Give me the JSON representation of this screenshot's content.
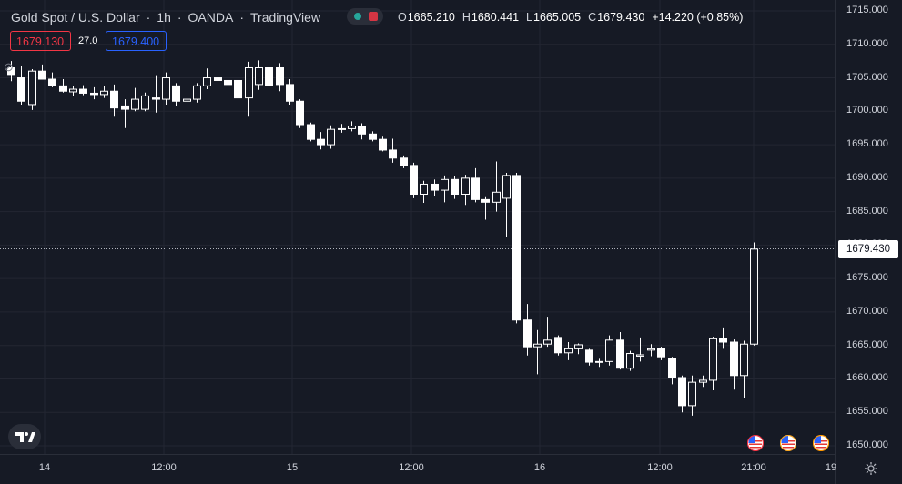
{
  "header": {
    "symbol": "Gold Spot / U.S. Dollar",
    "interval": "1h",
    "broker": "OANDA",
    "platform": "TradingView",
    "sep": "·",
    "o_label": "O",
    "o_value": "1665.210",
    "h_label": "H",
    "h_value": "1680.441",
    "l_label": "L",
    "l_value": "1665.005",
    "c_label": "C",
    "c_value": "1679.430",
    "change": "+14.220 (+0.85%)"
  },
  "trade": {
    "bid": "1679.130",
    "spread": "27.0",
    "ask": "1679.400"
  },
  "colors": {
    "background": "#161a25",
    "grid": "#232632",
    "candle_up": "#ffffff",
    "candle_down": "#ffffff",
    "bid": "#f23645",
    "ask": "#2962ff",
    "status_green": "#26a69a"
  },
  "icons": [
    "tradingview-logo-icon",
    "us-flag-icon",
    "settings-gear-icon",
    "status-dot-icon"
  ],
  "chart_data": {
    "type": "candlestick",
    "last_price": "1679.430",
    "y_ticks": [
      "1715.000",
      "1710.000",
      "1705.000",
      "1700.000",
      "1695.000",
      "1690.000",
      "1685.000",
      "1680.000",
      "1675.000",
      "1670.000",
      "1665.000",
      "1660.000",
      "1655.000",
      "1650.000"
    ],
    "ylim": [
      1650,
      1715
    ],
    "x_ticks": [
      "14",
      "12:00",
      "15",
      "12:00",
      "16",
      "12:00",
      "21:00",
      "19"
    ],
    "grid": true,
    "candles": [
      {
        "o": 1706.5,
        "h": 1707.5,
        "l": 1704.5,
        "c": 1705.5
      },
      {
        "o": 1705.0,
        "h": 1706.8,
        "l": 1701.0,
        "c": 1701.5
      },
      {
        "o": 1701.0,
        "h": 1706.3,
        "l": 1700.2,
        "c": 1706.0
      },
      {
        "o": 1706.0,
        "h": 1707.0,
        "l": 1704.8,
        "c": 1704.8
      },
      {
        "o": 1704.8,
        "h": 1705.8,
        "l": 1703.6,
        "c": 1703.8
      },
      {
        "o": 1703.8,
        "h": 1704.8,
        "l": 1702.8,
        "c": 1703.0
      },
      {
        "o": 1702.9,
        "h": 1703.8,
        "l": 1702.3,
        "c": 1703.3
      },
      {
        "o": 1703.3,
        "h": 1703.9,
        "l": 1702.4,
        "c": 1702.7
      },
      {
        "o": 1702.7,
        "h": 1703.6,
        "l": 1701.8,
        "c": 1702.5
      },
      {
        "o": 1702.5,
        "h": 1703.8,
        "l": 1702.0,
        "c": 1703.0
      },
      {
        "o": 1703.0,
        "h": 1704.0,
        "l": 1699.2,
        "c": 1700.5
      },
      {
        "o": 1700.8,
        "h": 1701.8,
        "l": 1697.5,
        "c": 1700.3
      },
      {
        "o": 1700.3,
        "h": 1703.5,
        "l": 1700.0,
        "c": 1701.8
      },
      {
        "o": 1700.3,
        "h": 1702.8,
        "l": 1700.0,
        "c": 1702.3
      },
      {
        "o": 1702.0,
        "h": 1705.4,
        "l": 1699.8,
        "c": 1701.8
      },
      {
        "o": 1701.8,
        "h": 1705.8,
        "l": 1701.0,
        "c": 1705.0
      },
      {
        "o": 1703.8,
        "h": 1704.2,
        "l": 1700.8,
        "c": 1701.5
      },
      {
        "o": 1701.5,
        "h": 1702.4,
        "l": 1699.2,
        "c": 1701.8
      },
      {
        "o": 1701.8,
        "h": 1704.2,
        "l": 1701.3,
        "c": 1703.8
      },
      {
        "o": 1703.8,
        "h": 1706.4,
        "l": 1703.3,
        "c": 1705.0
      },
      {
        "o": 1705.0,
        "h": 1706.8,
        "l": 1704.3,
        "c": 1704.6
      },
      {
        "o": 1704.6,
        "h": 1705.8,
        "l": 1703.4,
        "c": 1704.0
      },
      {
        "o": 1704.6,
        "h": 1706.2,
        "l": 1701.5,
        "c": 1702.0
      },
      {
        "o": 1702.0,
        "h": 1707.4,
        "l": 1699.2,
        "c": 1706.5
      },
      {
        "o": 1704.0,
        "h": 1707.6,
        "l": 1703.2,
        "c": 1706.5
      },
      {
        "o": 1706.5,
        "h": 1707.0,
        "l": 1702.5,
        "c": 1703.8
      },
      {
        "o": 1706.5,
        "h": 1707.2,
        "l": 1703.0,
        "c": 1704.0
      },
      {
        "o": 1704.0,
        "h": 1704.8,
        "l": 1701.0,
        "c": 1701.5
      },
      {
        "o": 1701.5,
        "h": 1701.8,
        "l": 1697.5,
        "c": 1698.0
      },
      {
        "o": 1698.0,
        "h": 1698.3,
        "l": 1695.5,
        "c": 1695.8
      },
      {
        "o": 1695.8,
        "h": 1696.9,
        "l": 1694.3,
        "c": 1695.0
      },
      {
        "o": 1695.0,
        "h": 1697.9,
        "l": 1694.4,
        "c": 1697.3
      },
      {
        "o": 1697.3,
        "h": 1698.1,
        "l": 1696.8,
        "c": 1697.4
      },
      {
        "o": 1697.4,
        "h": 1698.5,
        "l": 1697.0,
        "c": 1697.8
      },
      {
        "o": 1697.8,
        "h": 1698.2,
        "l": 1695.8,
        "c": 1696.6
      },
      {
        "o": 1696.6,
        "h": 1697.0,
        "l": 1695.5,
        "c": 1695.8
      },
      {
        "o": 1695.8,
        "h": 1696.2,
        "l": 1694.0,
        "c": 1694.2
      },
      {
        "o": 1694.2,
        "h": 1695.9,
        "l": 1692.3,
        "c": 1693.0
      },
      {
        "o": 1693.0,
        "h": 1693.4,
        "l": 1691.5,
        "c": 1691.9
      },
      {
        "o": 1691.9,
        "h": 1692.3,
        "l": 1687.0,
        "c": 1687.6
      },
      {
        "o": 1687.6,
        "h": 1689.6,
        "l": 1686.3,
        "c": 1689.1
      },
      {
        "o": 1689.1,
        "h": 1689.8,
        "l": 1687.4,
        "c": 1688.2
      },
      {
        "o": 1688.2,
        "h": 1690.4,
        "l": 1686.4,
        "c": 1689.8
      },
      {
        "o": 1689.8,
        "h": 1690.3,
        "l": 1686.9,
        "c": 1687.6
      },
      {
        "o": 1687.6,
        "h": 1690.5,
        "l": 1686.0,
        "c": 1690.0
      },
      {
        "o": 1690.0,
        "h": 1691.5,
        "l": 1686.4,
        "c": 1686.8
      },
      {
        "o": 1686.8,
        "h": 1687.3,
        "l": 1683.8,
        "c": 1686.4
      },
      {
        "o": 1686.4,
        "h": 1692.5,
        "l": 1685.0,
        "c": 1687.9
      },
      {
        "o": 1687.0,
        "h": 1690.8,
        "l": 1681.2,
        "c": 1690.4
      },
      {
        "o": 1690.4,
        "h": 1690.8,
        "l": 1668.3,
        "c": 1668.8
      },
      {
        "o": 1668.8,
        "h": 1671.2,
        "l": 1663.5,
        "c": 1664.8
      },
      {
        "o": 1664.8,
        "h": 1667.3,
        "l": 1660.7,
        "c": 1665.2
      },
      {
        "o": 1665.2,
        "h": 1669.3,
        "l": 1664.8,
        "c": 1665.8
      },
      {
        "o": 1666.2,
        "h": 1666.5,
        "l": 1663.5,
        "c": 1663.9
      },
      {
        "o": 1663.9,
        "h": 1665.5,
        "l": 1662.8,
        "c": 1664.5
      },
      {
        "o": 1664.5,
        "h": 1665.3,
        "l": 1663.7,
        "c": 1665.1
      },
      {
        "o": 1664.3,
        "h": 1664.5,
        "l": 1662.0,
        "c": 1662.5
      },
      {
        "o": 1662.5,
        "h": 1663.0,
        "l": 1661.8,
        "c": 1662.6
      },
      {
        "o": 1662.6,
        "h": 1666.5,
        "l": 1662.0,
        "c": 1665.8
      },
      {
        "o": 1665.8,
        "h": 1667.0,
        "l": 1661.4,
        "c": 1661.6
      },
      {
        "o": 1661.6,
        "h": 1664.2,
        "l": 1661.2,
        "c": 1663.8
      },
      {
        "o": 1663.4,
        "h": 1666.2,
        "l": 1662.6,
        "c": 1663.6
      },
      {
        "o": 1664.3,
        "h": 1665.2,
        "l": 1663.4,
        "c": 1664.5
      },
      {
        "o": 1664.5,
        "h": 1664.8,
        "l": 1662.8,
        "c": 1663.3
      },
      {
        "o": 1663.0,
        "h": 1663.3,
        "l": 1659.2,
        "c": 1660.2
      },
      {
        "o": 1660.2,
        "h": 1660.5,
        "l": 1655.0,
        "c": 1656.0
      },
      {
        "o": 1656.0,
        "h": 1660.5,
        "l": 1654.5,
        "c": 1659.5
      },
      {
        "o": 1659.5,
        "h": 1660.5,
        "l": 1658.8,
        "c": 1659.8
      },
      {
        "o": 1659.8,
        "h": 1666.3,
        "l": 1658.3,
        "c": 1666.0
      },
      {
        "o": 1666.0,
        "h": 1667.7,
        "l": 1664.5,
        "c": 1665.5
      },
      {
        "o": 1665.5,
        "h": 1665.9,
        "l": 1658.4,
        "c": 1660.5
      },
      {
        "o": 1660.5,
        "h": 1665.7,
        "l": 1657.2,
        "c": 1665.2
      },
      {
        "o": 1665.2,
        "h": 1680.4,
        "l": 1665.0,
        "c": 1679.4
      }
    ]
  }
}
